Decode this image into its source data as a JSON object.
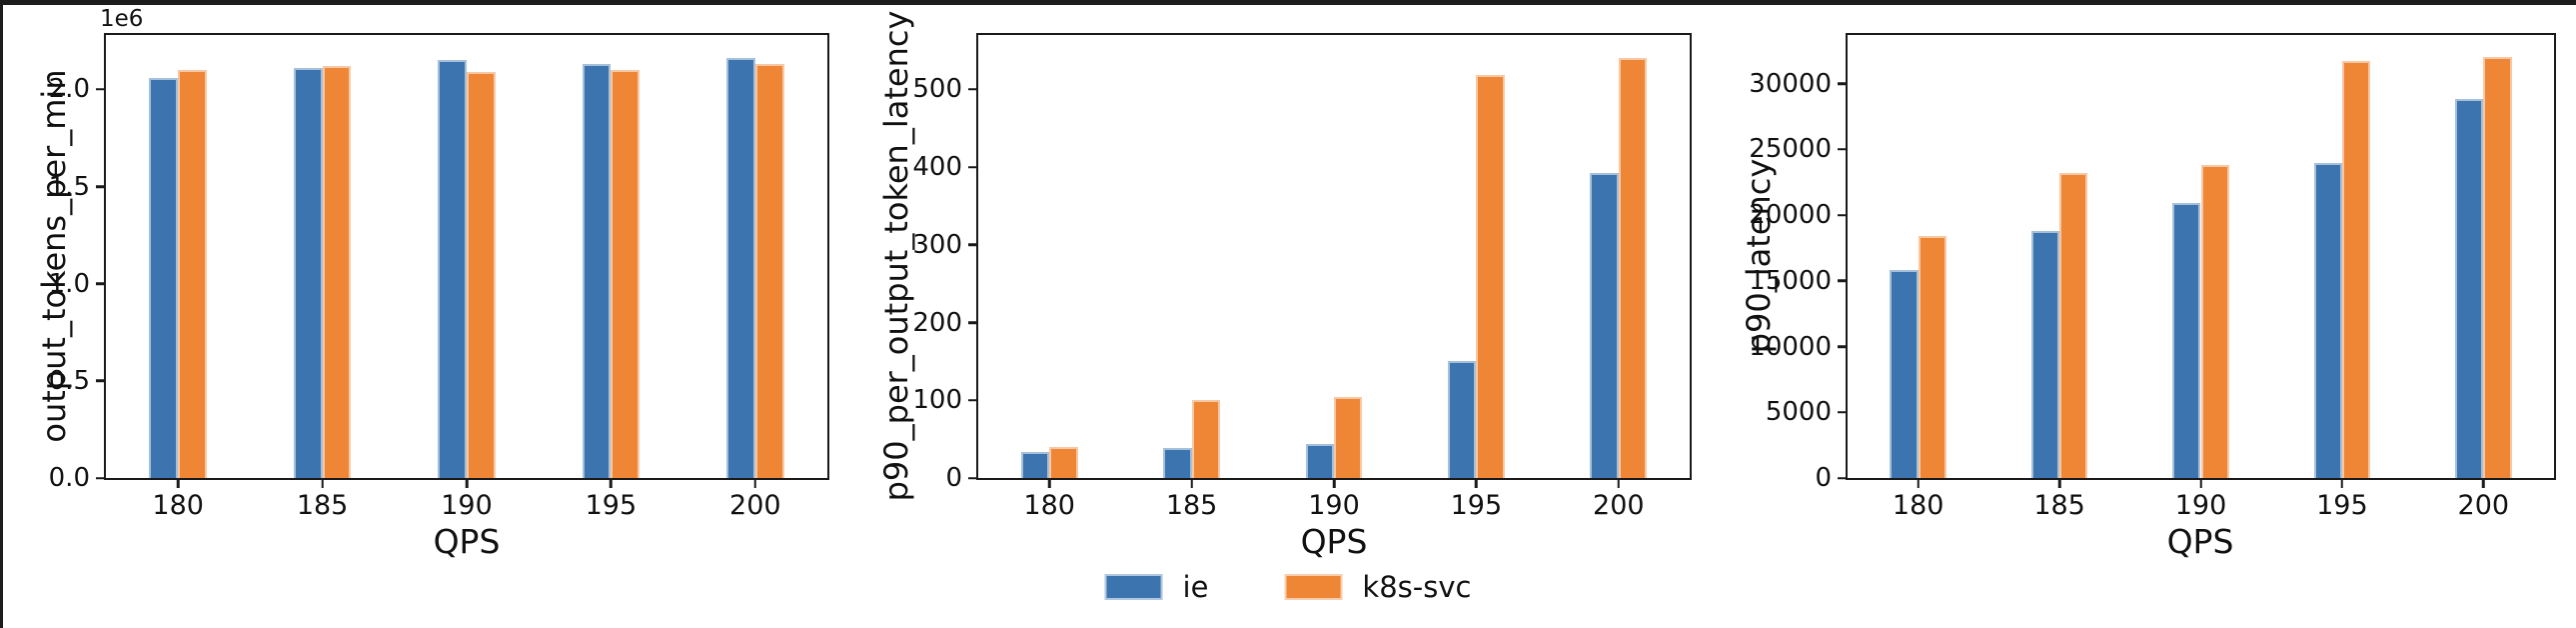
{
  "figure": {
    "legend": {
      "position": "bottom-center",
      "items": [
        {
          "label": "ie",
          "color": "#3b74ae"
        },
        {
          "label": "k8s-svc",
          "color": "#ef8636"
        }
      ]
    }
  },
  "chart_data": [
    {
      "type": "bar",
      "title": "",
      "ylabel": "output_tokens_per_min",
      "xlabel": "QPS",
      "offset_text": "1e6",
      "grid": false,
      "categories": [
        "180",
        "185",
        "190",
        "195",
        "200"
      ],
      "series": [
        {
          "name": "ie",
          "color": "#3b74ae",
          "values": [
            2060000,
            2110000,
            2150000,
            2130000,
            2160000
          ]
        },
        {
          "name": "k8s-svc",
          "color": "#ef8636",
          "values": [
            2100000,
            2120000,
            2090000,
            2100000,
            2130000
          ]
        }
      ],
      "ylim": [
        0,
        2280000
      ],
      "ytick_values": [
        0,
        500000,
        1000000,
        1500000,
        2000000
      ],
      "ytick_labels": [
        "0.0",
        "0.5",
        "1.0",
        "1.5",
        "2.0"
      ]
    },
    {
      "type": "bar",
      "title": "",
      "ylabel": "p90_per_output_token_latency",
      "xlabel": "QPS",
      "offset_text": "",
      "grid": false,
      "categories": [
        "180",
        "185",
        "190",
        "195",
        "200"
      ],
      "series": [
        {
          "name": "ie",
          "color": "#3b74ae",
          "values": [
            33,
            38,
            44,
            150,
            393
          ]
        },
        {
          "name": "k8s-svc",
          "color": "#ef8636",
          "values": [
            40,
            100,
            104,
            518,
            540
          ]
        }
      ],
      "ylim": [
        0,
        570
      ],
      "ytick_values": [
        0,
        100,
        200,
        300,
        400,
        500
      ],
      "ytick_labels": [
        "0",
        "100",
        "200",
        "300",
        "400",
        "500"
      ]
    },
    {
      "type": "bar",
      "title": "",
      "ylabel": "p90_latency",
      "xlabel": "QPS",
      "offset_text": "",
      "grid": false,
      "categories": [
        "180",
        "185",
        "190",
        "195",
        "200"
      ],
      "series": [
        {
          "name": "ie",
          "color": "#3b74ae",
          "values": [
            15800,
            18800,
            20900,
            24000,
            28800
          ]
        },
        {
          "name": "k8s-svc",
          "color": "#ef8636",
          "values": [
            18400,
            23200,
            23800,
            31700,
            32000
          ]
        }
      ],
      "ylim": [
        0,
        33700
      ],
      "ytick_values": [
        0,
        5000,
        10000,
        15000,
        20000,
        25000,
        30000
      ],
      "ytick_labels": [
        "0",
        "5000",
        "10000",
        "15000",
        "20000",
        "25000",
        "30000"
      ]
    }
  ]
}
